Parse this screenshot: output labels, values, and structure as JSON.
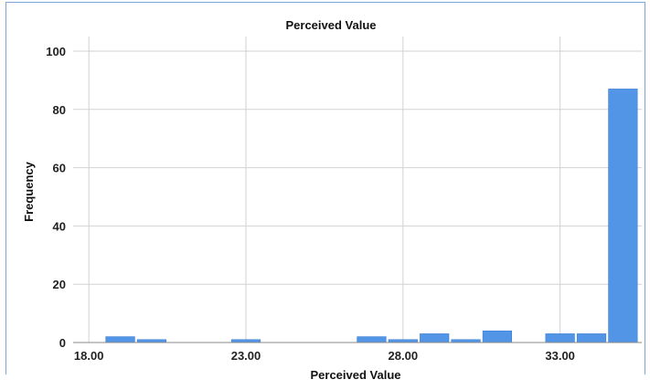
{
  "chart_data": {
    "type": "bar",
    "title": "Perceived Value",
    "xlabel": "Perceived Value",
    "ylabel": "Frequency",
    "xlim": [
      17.5,
      35.6
    ],
    "ylim": [
      0,
      105
    ],
    "x_ticks": [
      18,
      23,
      28,
      33
    ],
    "x_tick_labels": [
      "18.00",
      "23.00",
      "28.00",
      "33.00"
    ],
    "y_ticks": [
      0,
      20,
      40,
      60,
      80,
      100
    ],
    "y_tick_labels": [
      "0",
      "20",
      "40",
      "60",
      "80",
      "100"
    ],
    "bin_width": 1,
    "bins": [
      {
        "x": 19,
        "value": 2
      },
      {
        "x": 20,
        "value": 1
      },
      {
        "x": 23,
        "value": 1
      },
      {
        "x": 27,
        "value": 2
      },
      {
        "x": 28,
        "value": 1
      },
      {
        "x": 29,
        "value": 3
      },
      {
        "x": 30,
        "value": 1
      },
      {
        "x": 31,
        "value": 4
      },
      {
        "x": 33,
        "value": 3
      },
      {
        "x": 34,
        "value": 3
      },
      {
        "x": 35,
        "value": 87
      }
    ],
    "grid": true,
    "bar_color": "#5294e6"
  }
}
